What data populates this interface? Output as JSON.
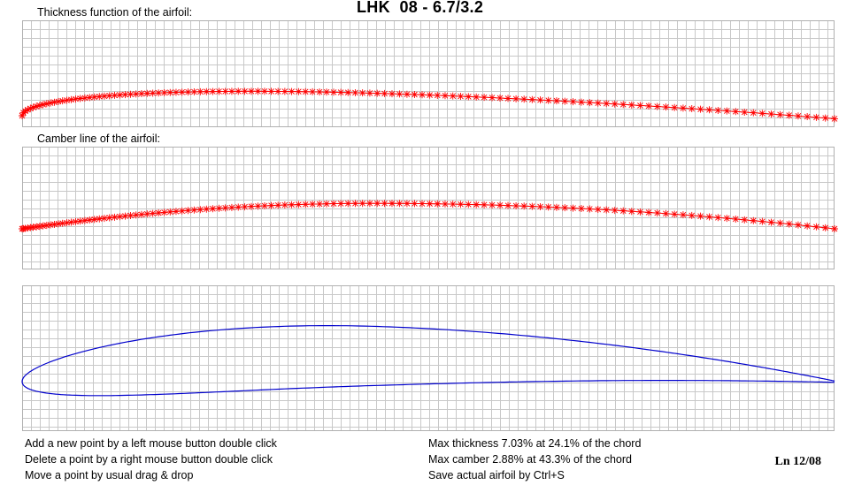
{
  "title": "LHK  08 - 6.7/3.2",
  "panels": {
    "thickness_label": "Thickness function of the airfoil:",
    "camber_label": "Camber line of the airfoil:"
  },
  "instructions": [
    "Add a new point by a left mouse button double click",
    "Delete a point by a right mouse button double click",
    "Move a point by usual drag & drop"
  ],
  "stats": [
    "Max thickness 7.03% at 24.1% of the chord",
    "Max camber 2.88% at 43.3% of the chord",
    "Save actual airfoil by Ctrl+S"
  ],
  "stamp": "Ln 12/08",
  "colors": {
    "curve_points": "#ff0000",
    "airfoil": "#0000cc",
    "grid": "#c8c8c8"
  }
}
